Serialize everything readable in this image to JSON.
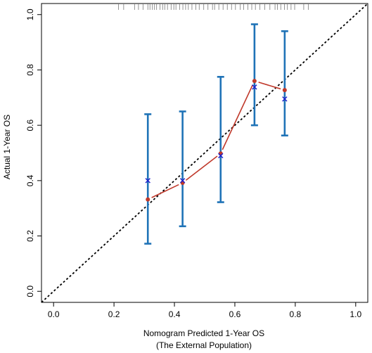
{
  "chart_data": {
    "type": "scatter",
    "title": "",
    "xlabel": "Nomogram Predicted 1-Year OS",
    "xlabel2": "(The External Population)",
    "ylabel": "Actual 1-Year OS",
    "xlim": [
      -0.04,
      1.04
    ],
    "ylim": [
      -0.04,
      1.04
    ],
    "xticks": [
      0.0,
      0.2,
      0.4,
      0.6,
      0.8,
      1.0
    ],
    "yticks": [
      0.0,
      0.2,
      0.4,
      0.6,
      0.8,
      1.0
    ],
    "xtick_labels": [
      "0.0",
      "0.2",
      "0.4",
      "0.6",
      "0.8",
      "1.0"
    ],
    "ytick_labels": [
      "0.0",
      "0.2",
      "0.4",
      "0.6",
      "0.8",
      "1.0"
    ],
    "reference_line": {
      "x": [
        -0.04,
        1.04
      ],
      "y": [
        -0.04,
        1.04
      ],
      "style": "dotted",
      "color": "#000000"
    },
    "series": [
      {
        "kind": "apparent",
        "color": "#c0392b",
        "points": [
          {
            "x": 0.312,
            "y": 0.332
          },
          {
            "x": 0.427,
            "y": 0.392
          },
          {
            "x": 0.553,
            "y": 0.498
          },
          {
            "x": 0.665,
            "y": 0.76
          },
          {
            "x": 0.765,
            "y": 0.727
          }
        ]
      },
      {
        "kind": "bias_corrected",
        "marker": "x",
        "color": "#1a1acc",
        "points": [
          {
            "x": 0.312,
            "y": 0.4
          },
          {
            "x": 0.427,
            "y": 0.4
          },
          {
            "x": 0.553,
            "y": 0.49
          },
          {
            "x": 0.665,
            "y": 0.738
          },
          {
            "x": 0.765,
            "y": 0.695
          }
        ]
      }
    ],
    "error_bars": {
      "color": "#1f73b7",
      "bars": [
        {
          "x": 0.312,
          "low": 0.172,
          "high": 0.64
        },
        {
          "x": 0.427,
          "low": 0.235,
          "high": 0.65
        },
        {
          "x": 0.553,
          "low": 0.322,
          "high": 0.775
        },
        {
          "x": 0.665,
          "low": 0.6,
          "high": 0.965
        },
        {
          "x": 0.765,
          "low": 0.563,
          "high": 0.94
        }
      ]
    },
    "rug": [
      0.215,
      0.232,
      0.268,
      0.281,
      0.296,
      0.312,
      0.319,
      0.327,
      0.334,
      0.341,
      0.352,
      0.361,
      0.368,
      0.377,
      0.389,
      0.398,
      0.405,
      0.417,
      0.428,
      0.437,
      0.446,
      0.458,
      0.471,
      0.482,
      0.497,
      0.511,
      0.526,
      0.533,
      0.547,
      0.561,
      0.575,
      0.589,
      0.602,
      0.618,
      0.629,
      0.643,
      0.656,
      0.668,
      0.683,
      0.699,
      0.716,
      0.733,
      0.741,
      0.752,
      0.764,
      0.774,
      0.786,
      0.798,
      0.828,
      0.843
    ],
    "grid": false,
    "legend": "none"
  }
}
